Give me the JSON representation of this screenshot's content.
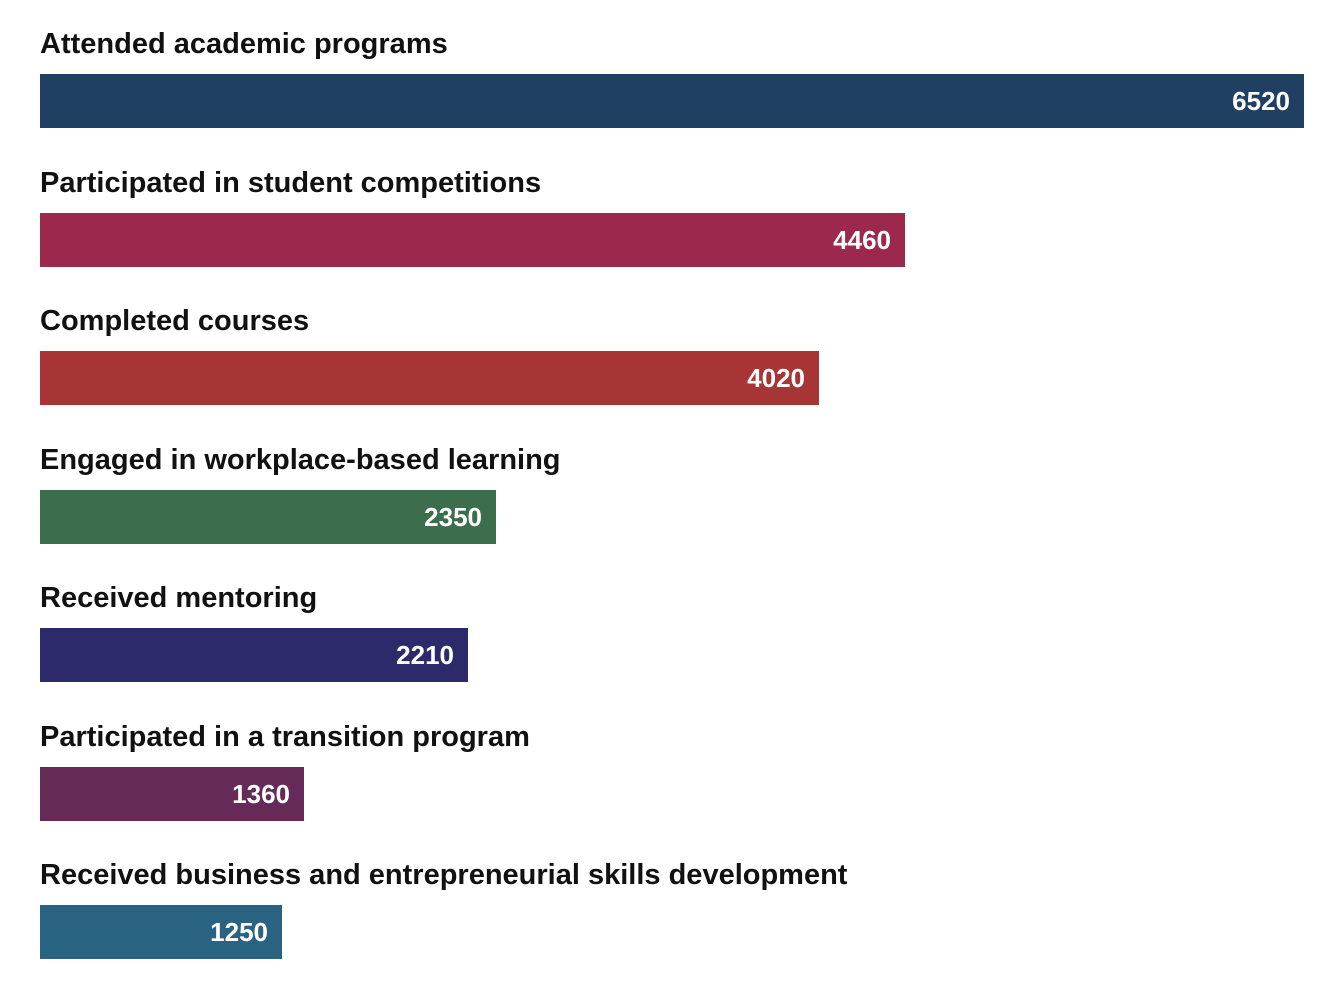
{
  "chart_data": {
    "type": "bar",
    "orientation": "horizontal",
    "categories": [
      "Attended academic programs",
      "Participated in student competitions",
      "Completed courses",
      "Engaged in workplace-based learning",
      "Received mentoring",
      "Participated in a transition program",
      "Received business and entrepreneurial skills development"
    ],
    "values": [
      6520,
      4460,
      4020,
      2350,
      2210,
      1360,
      1250
    ],
    "value_labels": [
      "6520",
      "4460",
      "4020",
      "2350",
      "2210",
      "1360",
      "1250"
    ],
    "colors": [
      "#1f3f63",
      "#9c284d",
      "#a83535",
      "#3c6e4d",
      "#2d2a6b",
      "#652a58",
      "#2a6281"
    ],
    "xlim": [
      0,
      6520
    ],
    "grid": false,
    "legend": "none"
  }
}
